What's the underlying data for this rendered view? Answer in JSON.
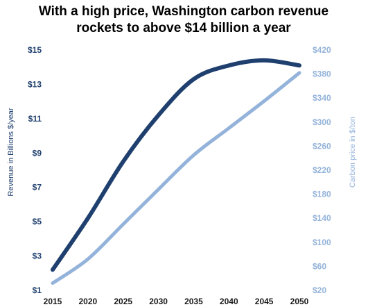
{
  "chart_data": {
    "type": "line",
    "title": "With a high price, Washington carbon revenue rockets to above $14 billion a year",
    "title_lines": [
      "With a high price, Washington carbon revenue",
      "rockets to above $14 billion a year"
    ],
    "ylabel": "Revenue in Billions $/year",
    "y2label": "Carbon price in $/ton",
    "xlim": [
      2015,
      2050
    ],
    "ylim": [
      1,
      15
    ],
    "y2lim": [
      20,
      420
    ],
    "x_ticks": [
      "2015",
      "2020",
      "2025",
      "2030",
      "2035",
      "2040",
      "2045",
      "2050"
    ],
    "y_ticks": [
      "$1",
      "$3",
      "$5",
      "$7",
      "$9",
      "$11",
      "$13",
      "$15"
    ],
    "y2_ticks": [
      "$20",
      "$60",
      "$100",
      "$140",
      "$180",
      "$220",
      "$260",
      "$300",
      "$340",
      "$380",
      "$420"
    ],
    "grid": false,
    "legend": "none",
    "series": [
      {
        "axis": "left",
        "color": "#1f3f6e",
        "x": [
          2015,
          2020,
          2025,
          2030,
          2035,
          2040,
          2045,
          2050
        ],
        "values": [
          2.2,
          5.2,
          8.5,
          11.2,
          13.3,
          14.1,
          14.4,
          14.1
        ]
      },
      {
        "axis": "right",
        "color": "#94b3da",
        "x": [
          2015,
          2020,
          2025,
          2030,
          2035,
          2040,
          2045,
          2050
        ],
        "values": [
          32,
          72,
          130,
          188,
          245,
          290,
          335,
          382
        ]
      }
    ]
  },
  "colors": {
    "left_axis": "#1f3f6e",
    "right_axis": "#94b3da"
  }
}
